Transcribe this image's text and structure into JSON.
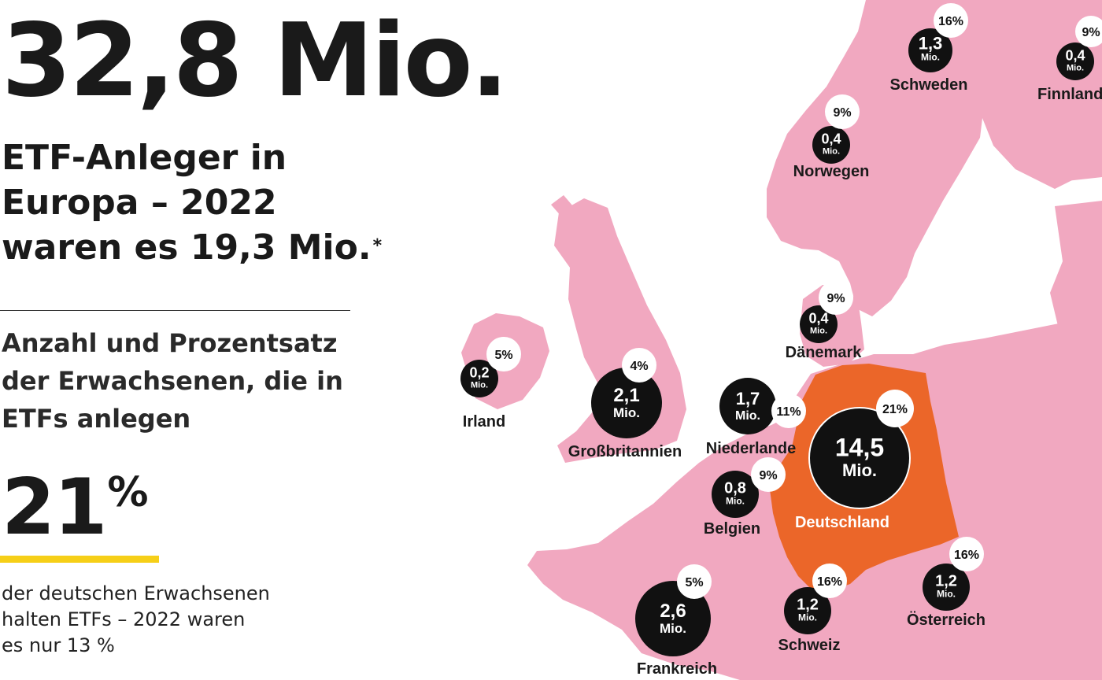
{
  "headline": {
    "big_number": "32,8 Mio.",
    "line1": "ETF-Anleger in",
    "line2": "Europa – 2022",
    "line3": "waren es 19,3 Mio.",
    "footnote_mark": "*"
  },
  "description": {
    "line1": "Anzahl und Prozentsatz",
    "line2": "der Erwachsenen, die in",
    "line3": "ETFs anlegen"
  },
  "germany_highlight": {
    "percent_value": "21",
    "percent_sign": "%",
    "note_line1": "der deutschen Erwachsenen",
    "note_line2": "halten ETFs – 2022 waren",
    "note_line3": "es nur 13 %"
  },
  "colors": {
    "land": "#f1a8c0",
    "germany": "#eb6629",
    "bubble": "#111111",
    "accent_bar": "#f6cf18"
  },
  "countries": [
    {
      "id": "schweden",
      "name": "Schweden",
      "investors_mio": 1.3,
      "value": "1,3",
      "unit": "Mio.",
      "percent": "16%"
    },
    {
      "id": "finnland",
      "name": "Finnland",
      "investors_mio": 0.4,
      "value": "0,4",
      "unit": "Mio.",
      "percent": "9%"
    },
    {
      "id": "norwegen",
      "name": "Norwegen",
      "investors_mio": 0.4,
      "value": "0,4",
      "unit": "Mio.",
      "percent": "9%"
    },
    {
      "id": "daenemark",
      "name": "Dänemark",
      "investors_mio": 0.4,
      "value": "0,4",
      "unit": "Mio.",
      "percent": "9%"
    },
    {
      "id": "irland",
      "name": "Irland",
      "investors_mio": 0.2,
      "value": "0,2",
      "unit": "Mio.",
      "percent": "5%"
    },
    {
      "id": "grossbritannien",
      "name": "Großbritannien",
      "investors_mio": 2.1,
      "value": "2,1",
      "unit": "Mio.",
      "percent": "4%"
    },
    {
      "id": "niederlande",
      "name": "Niederlande",
      "investors_mio": 1.7,
      "value": "1,7",
      "unit": "Mio.",
      "percent": "11%"
    },
    {
      "id": "deutschland",
      "name": "Deutschland",
      "investors_mio": 14.5,
      "value": "14,5",
      "unit": "Mio.",
      "percent": "21%"
    },
    {
      "id": "belgien",
      "name": "Belgien",
      "investors_mio": 0.8,
      "value": "0,8",
      "unit": "Mio.",
      "percent": "9%"
    },
    {
      "id": "oesterreich",
      "name": "Österreich",
      "investors_mio": 1.2,
      "value": "1,2",
      "unit": "Mio.",
      "percent": "16%"
    },
    {
      "id": "schweiz",
      "name": "Schweiz",
      "investors_mio": 1.2,
      "value": "1,2",
      "unit": "Mio.",
      "percent": "16%"
    },
    {
      "id": "frankreich",
      "name": "Frankreich",
      "investors_mio": 2.6,
      "value": "2,6",
      "unit": "Mio.",
      "percent": "5%"
    }
  ]
}
